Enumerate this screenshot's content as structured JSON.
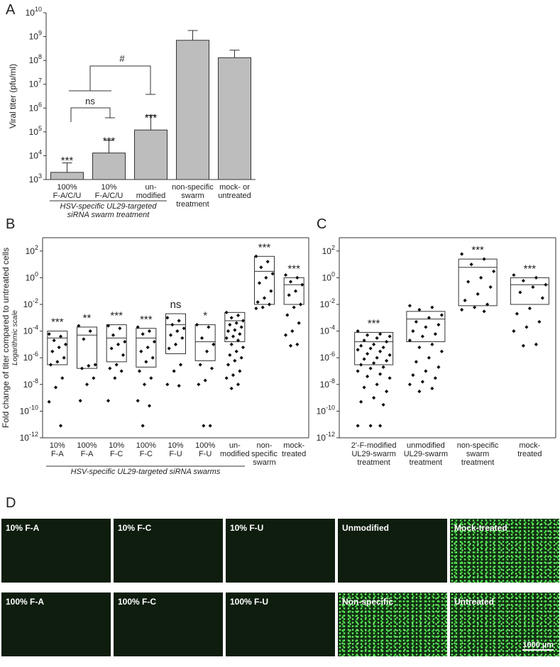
{
  "chart_data": [
    {
      "type": "bar",
      "panel_label": "A",
      "log_y": true,
      "color": "#bdbdbd",
      "y_label": "Viral titer (pfu/ml)",
      "categories": [
        [
          "100%",
          "F-A/C/U"
        ],
        [
          "10%",
          "F-A/C/U"
        ],
        [
          "un-",
          "modified"
        ],
        [
          "non-specific",
          "swarm",
          "treatment"
        ],
        [
          "mock- or",
          "untreated"
        ]
      ],
      "values": [
        2000,
        13000,
        120000,
        700000000,
        130000000
      ],
      "errors": [
        3000,
        32000,
        380000,
        1100000000,
        140000000
      ],
      "significance": [
        "***",
        "***",
        "***",
        null,
        null
      ],
      "annotations": [
        "ns",
        "#"
      ],
      "group_label": [
        "HSV-specific UL29-targeted",
        "siRNA swarm treatment"
      ],
      "ylim": [
        1000,
        10000000000
      ],
      "yticks": [
        {
          "value": 1000,
          "label": "10",
          "exponent": "3"
        },
        {
          "value": 10000,
          "label": "10",
          "exponent": "4"
        },
        {
          "value": 100000,
          "label": "10",
          "exponent": "5"
        },
        {
          "value": 1000000,
          "label": "10",
          "exponent": "6"
        },
        {
          "value": 10000000,
          "label": "10",
          "exponent": "7"
        },
        {
          "value": 100000000,
          "label": "10",
          "exponent": "8"
        },
        {
          "value": 1000000000,
          "label": "10",
          "exponent": "9"
        },
        {
          "value": 10000000000,
          "label": "10",
          "exponent": "10"
        }
      ]
    },
    {
      "type": "box",
      "panel_label": "B",
      "log_y": true,
      "y_label": "Fold change of titer compared to untreated cells",
      "y_sublabel": "Logarithmic scale",
      "categories": [
        [
          "10%",
          "F-A"
        ],
        [
          "100%",
          "F-A"
        ],
        [
          "10%",
          "F-C"
        ],
        [
          "100%",
          "F-C"
        ],
        [
          "10%",
          "F-U"
        ],
        [
          "100%",
          "F-U"
        ],
        [
          "un-",
          "modified"
        ],
        [
          "non-",
          "specific",
          "swarm"
        ],
        [
          "mock-",
          "treated"
        ]
      ],
      "box_low": [
        3e-07,
        1.6e-07,
        5e-07,
        2e-07,
        2e-06,
        6e-07,
        1.6e-05,
        0.01,
        0.01
      ],
      "box_mid": [
        3e-05,
        5e-05,
        3e-05,
        3e-05,
        0.0003,
        1.6e-05,
        0.0006,
        3,
        0.3
      ],
      "box_high": [
        0.0001,
        0.0002,
        0.0003,
        0.00016,
        0.002,
        0.0003,
        0.0025,
        40,
        1
      ],
      "points": [
        [
          6e-05,
          4e-05,
          2e-05,
          1e-05,
          6e-06,
          3e-06,
          1e-06,
          5e-07,
          3e-07,
          3e-08,
          6e-09,
          5e-10,
          8e-12
        ],
        [
          0.00025,
          0.0001,
          2.5e-05,
          3e-07,
          2.5e-07,
          1.6e-07,
          3e-08,
          1e-08,
          6e-10
        ],
        [
          0.00025,
          0.00016,
          5e-05,
          1.6e-05,
          1e-05,
          5e-06,
          1.6e-06,
          3e-07,
          1.6e-07,
          1e-07,
          3e-08,
          6e-10
        ],
        [
          0.0002,
          0.0001,
          6e-05,
          1.6e-05,
          6e-06,
          3e-06,
          1e-06,
          5e-07,
          1e-07,
          3e-08,
          1e-08,
          6e-10,
          2.5e-10,
          8e-12
        ],
        [
          0.001,
          0.0006,
          0.0003,
          0.00016,
          0.0001,
          5e-05,
          3e-05,
          1e-05,
          5e-06,
          3e-07,
          1e-07,
          1e-08,
          8e-09
        ],
        [
          0.0003,
          0.0002,
          3e-05,
          1e-05,
          3e-06,
          3e-07,
          1.6e-07,
          2e-08,
          1e-08,
          8e-12,
          8e-12
        ],
        [
          0.0025,
          0.0015,
          0.001,
          0.0006,
          0.0004,
          0.0003,
          0.0002,
          0.00012,
          0.0001,
          6e-05,
          4e-05,
          3e-05,
          2e-05,
          1e-05,
          6e-06,
          3e-06,
          1.6e-06,
          1e-06,
          6e-07,
          3e-07,
          1e-07,
          5e-08,
          3e-08,
          1e-08,
          5e-09
        ],
        [
          40,
          16,
          6,
          2,
          1,
          0.4,
          0.1,
          0.03,
          0.015,
          0.01,
          0.006,
          0.005
        ],
        [
          1.6,
          1,
          0.5,
          0.3,
          0.1,
          0.05,
          0.01,
          0.006,
          0.0016,
          0.0004,
          0.0001,
          5e-05,
          1e-05,
          8e-06
        ]
      ],
      "significance": [
        "***",
        "**",
        "***",
        "***",
        "ns",
        "*",
        null,
        "***",
        "***"
      ],
      "group_label": [
        "HSV-specific UL29-targeted siRNA swarms"
      ],
      "ylim": [
        1e-12,
        1000
      ],
      "yticks": [
        {
          "value": 1e-12,
          "label": "10",
          "exponent": "-12"
        },
        {
          "value": 1e-10,
          "label": "10",
          "exponent": "-10"
        },
        {
          "value": 1e-08,
          "label": "10",
          "exponent": "-8"
        },
        {
          "value": 1e-06,
          "label": "10",
          "exponent": "-6"
        },
        {
          "value": 0.0001,
          "label": "10",
          "exponent": "-4"
        },
        {
          "value": 0.01,
          "label": "10",
          "exponent": "-2"
        },
        {
          "value": 1,
          "label": "10",
          "exponent": "0"
        },
        {
          "value": 100,
          "label": "10",
          "exponent": "2"
        }
      ]
    },
    {
      "type": "box",
      "panel_label": "C",
      "log_y": true,
      "categories": [
        [
          "2'-F-modified",
          "UL29-swarm",
          "treatment"
        ],
        [
          "unmodified",
          "UL29-swarm",
          "treatment"
        ],
        [
          "non-specific",
          "swarm",
          "treatment"
        ],
        [
          "mock-",
          "treated"
        ]
      ],
      "box_low": [
        3e-07,
        1.6e-05,
        0.008,
        0.01
      ],
      "box_mid": [
        1.6e-05,
        0.0008,
        6,
        0.3
      ],
      "box_high": [
        8e-05,
        0.003,
        25,
        1
      ],
      "points": [
        [
          0.0001,
          6e-05,
          5e-05,
          4e-05,
          3e-05,
          2e-05,
          1.6e-05,
          1e-05,
          8e-06,
          6e-06,
          5e-06,
          4e-06,
          3e-06,
          2e-06,
          1.6e-06,
          1e-06,
          8e-07,
          6e-07,
          4e-07,
          3e-07,
          2e-07,
          1.6e-07,
          1e-07,
          6e-08,
          4e-08,
          3e-08,
          1e-08,
          6e-09,
          3e-09,
          1e-09,
          5e-10,
          3e-10,
          8e-12,
          8e-12,
          8e-12
        ],
        [
          0.008,
          0.006,
          0.004,
          0.0016,
          0.001,
          0.0005,
          0.0003,
          0.0002,
          0.0001,
          6e-05,
          4e-05,
          2e-05,
          1e-05,
          6e-06,
          3e-06,
          1e-06,
          5e-07,
          2e-07,
          1e-07,
          5e-08,
          3e-08,
          1.6e-08,
          1e-08,
          5e-09,
          3e-09
        ],
        [
          60,
          25,
          10,
          3,
          1,
          0.5,
          0.2,
          0.06,
          0.02,
          0.01,
          0.006,
          0.004,
          0.003
        ],
        [
          1.6,
          1,
          0.6,
          0.3,
          0.2,
          0.08,
          0.03,
          0.005,
          0.002,
          0.0005,
          0.0002,
          0.0001,
          1e-05,
          8e-06
        ]
      ],
      "significance": [
        "***",
        null,
        "***",
        "***"
      ],
      "ylim": [
        1e-12,
        1000
      ],
      "yticks": [
        {
          "value": 1e-12,
          "label": "10",
          "exponent": "-12"
        },
        {
          "value": 1e-10,
          "label": "10",
          "exponent": "-10"
        },
        {
          "value": 1e-08,
          "label": "10",
          "exponent": "-8"
        },
        {
          "value": 1e-06,
          "label": "10",
          "exponent": "-6"
        },
        {
          "value": 0.0001,
          "label": "10",
          "exponent": "-4"
        },
        {
          "value": 0.01,
          "label": "10",
          "exponent": "-2"
        },
        {
          "value": 1,
          "label": "10",
          "exponent": "0"
        },
        {
          "value": 100,
          "label": "10",
          "exponent": "2"
        }
      ]
    }
  ],
  "panel_d": {
    "panel_label": "D",
    "scale_bar": "1000 µm",
    "images": [
      "10% F-A",
      "10% F-C",
      "10% F-U",
      "Unmodified",
      "Mock-treated",
      "100% F-A",
      "100% F-C",
      "100% F-U",
      "Non-specific",
      "Untreated"
    ]
  }
}
